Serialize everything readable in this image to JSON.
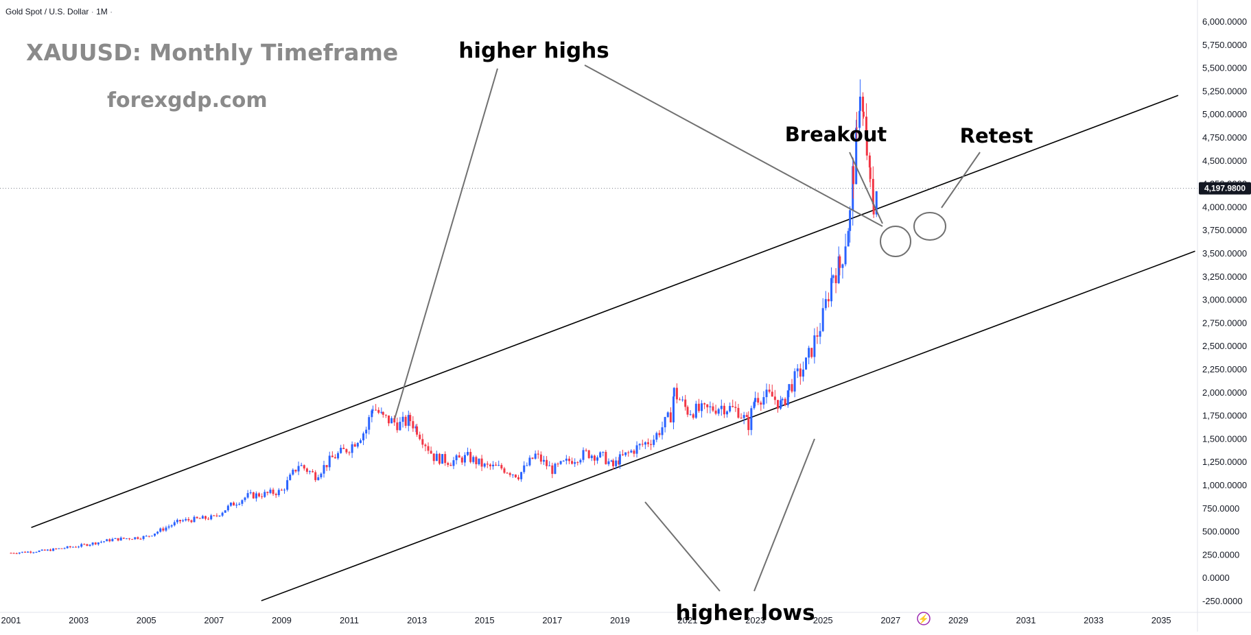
{
  "header": {
    "symbol": "Gold Spot / U.S. Dollar",
    "interval": "1M",
    "separator": "·"
  },
  "title": "XAUUSD: Monthly Timeframe",
  "site": "forexgdp.com",
  "annotations": {
    "higher_highs": "higher highs",
    "higher_lows": "higher lows",
    "breakout": "Breakout",
    "retest": "Retest"
  },
  "colors": {
    "up_candle": "#2962ff",
    "down_candle": "#f23645",
    "channel": "#000000",
    "arrow": "#707070",
    "title": "#8a8a8a",
    "price_tag_bg": "#131722",
    "tv_badge": "#9c27b0"
  },
  "current_price_label": "4,197.9800",
  "chart_data": {
    "type": "candlestick",
    "title": "XAUUSD: Monthly Timeframe",
    "series": [
      {
        "name": "Gold Spot / U.S. Dollar",
        "x": [
          2001,
          2002,
          2003,
          2004,
          2005,
          2006,
          2007,
          2007.5,
          2008,
          2008.5,
          2009,
          2009.5,
          2010,
          2010.5,
          2011,
          2011.5,
          2011.7,
          2012,
          2012.5,
          2012.8,
          2013,
          2013.5,
          2014,
          2014.5,
          2015,
          2015.5,
          2016,
          2016.5,
          2017,
          2017.5,
          2018,
          2018.5,
          2018.8,
          2019,
          2019.5,
          2020,
          2020.5,
          2020.6,
          2021,
          2021.5,
          2022,
          2022.5,
          2022.8,
          2023,
          2023.5,
          2023.8,
          2024,
          2024.5,
          2025,
          2025.3,
          2025.5,
          2025.8,
          2025.9,
          2026.0,
          2026.1,
          2026.2,
          2026.3,
          2026.4,
          2026.5,
          2026.6
        ],
        "values": [
          265,
          290,
          340,
          410,
          440,
          610,
          650,
          780,
          880,
          900,
          930,
          1220,
          1100,
          1290,
          1400,
          1600,
          1850,
          1720,
          1650,
          1700,
          1600,
          1300,
          1250,
          1300,
          1200,
          1180,
          1100,
          1320,
          1160,
          1260,
          1340,
          1300,
          1200,
          1280,
          1400,
          1500,
          1750,
          2000,
          1800,
          1800,
          1850,
          1800,
          1650,
          1950,
          1950,
          1850,
          2050,
          2300,
          2800,
          3300,
          3350,
          3900,
          4400,
          4700,
          5300,
          4900,
          4600,
          4200,
          4050,
          4198
        ],
        "color": "#2962ff"
      }
    ],
    "xlim": [
      2001,
      2036
    ],
    "ylim": [
      -250,
      6000
    ],
    "x_ticks": [
      "2001",
      "2003",
      "2005",
      "2007",
      "2009",
      "2011",
      "2013",
      "2015",
      "2017",
      "2019",
      "2021",
      "2023",
      "2025",
      "2027",
      "2029",
      "2031",
      "2033",
      "2035"
    ],
    "y_ticks": [
      "6,000.0000",
      "5,750.0000",
      "5,500.0000",
      "5,250.0000",
      "5,000.0000",
      "4,750.0000",
      "4,500.0000",
      "4,250.0000",
      "4,000.0000",
      "3,750.0000",
      "3,500.0000",
      "3,250.0000",
      "3,000.0000",
      "2,750.0000",
      "2,500.0000",
      "2,250.0000",
      "2,000.0000",
      "1,750.0000",
      "1,500.0000",
      "1,250.0000",
      "1,000.0000",
      "750.0000",
      "500.0000",
      "250.0000",
      "0.0000",
      "-250.0000"
    ],
    "last_price": 4197.98,
    "channel_lines": [
      {
        "x1": 2001.6,
        "y1": 540,
        "x2": 2035.5,
        "y2": 5200
      },
      {
        "x1": 2008.4,
        "y1": -250,
        "x2": 2036.0,
        "y2": 3520
      }
    ],
    "grid": false,
    "legend": "none"
  }
}
